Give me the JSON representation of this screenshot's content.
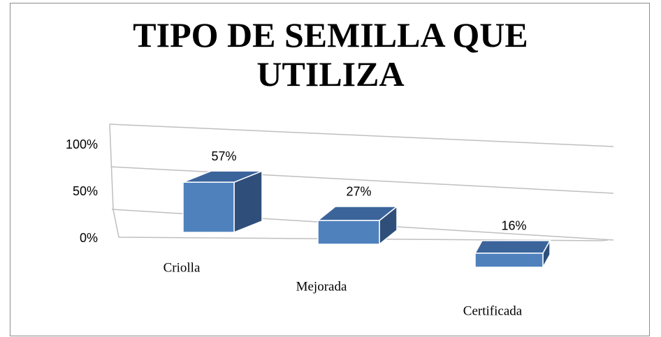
{
  "chart_data": {
    "type": "bar3d",
    "title": "TIPO DE SEMILLA QUE UTILIZA",
    "categories": [
      "Criolla",
      "Mejorada",
      "Certificada"
    ],
    "values": [
      57,
      27,
      16
    ],
    "value_labels": [
      "57%",
      "27%",
      "16%"
    ],
    "color": "#4f81bd",
    "ylim": [
      0,
      100
    ],
    "yticks": [
      {
        "value": 0,
        "label": "0%"
      },
      {
        "value": 50,
        "label": "50%"
      },
      {
        "value": 100,
        "label": "100%"
      }
    ],
    "grid": true
  }
}
